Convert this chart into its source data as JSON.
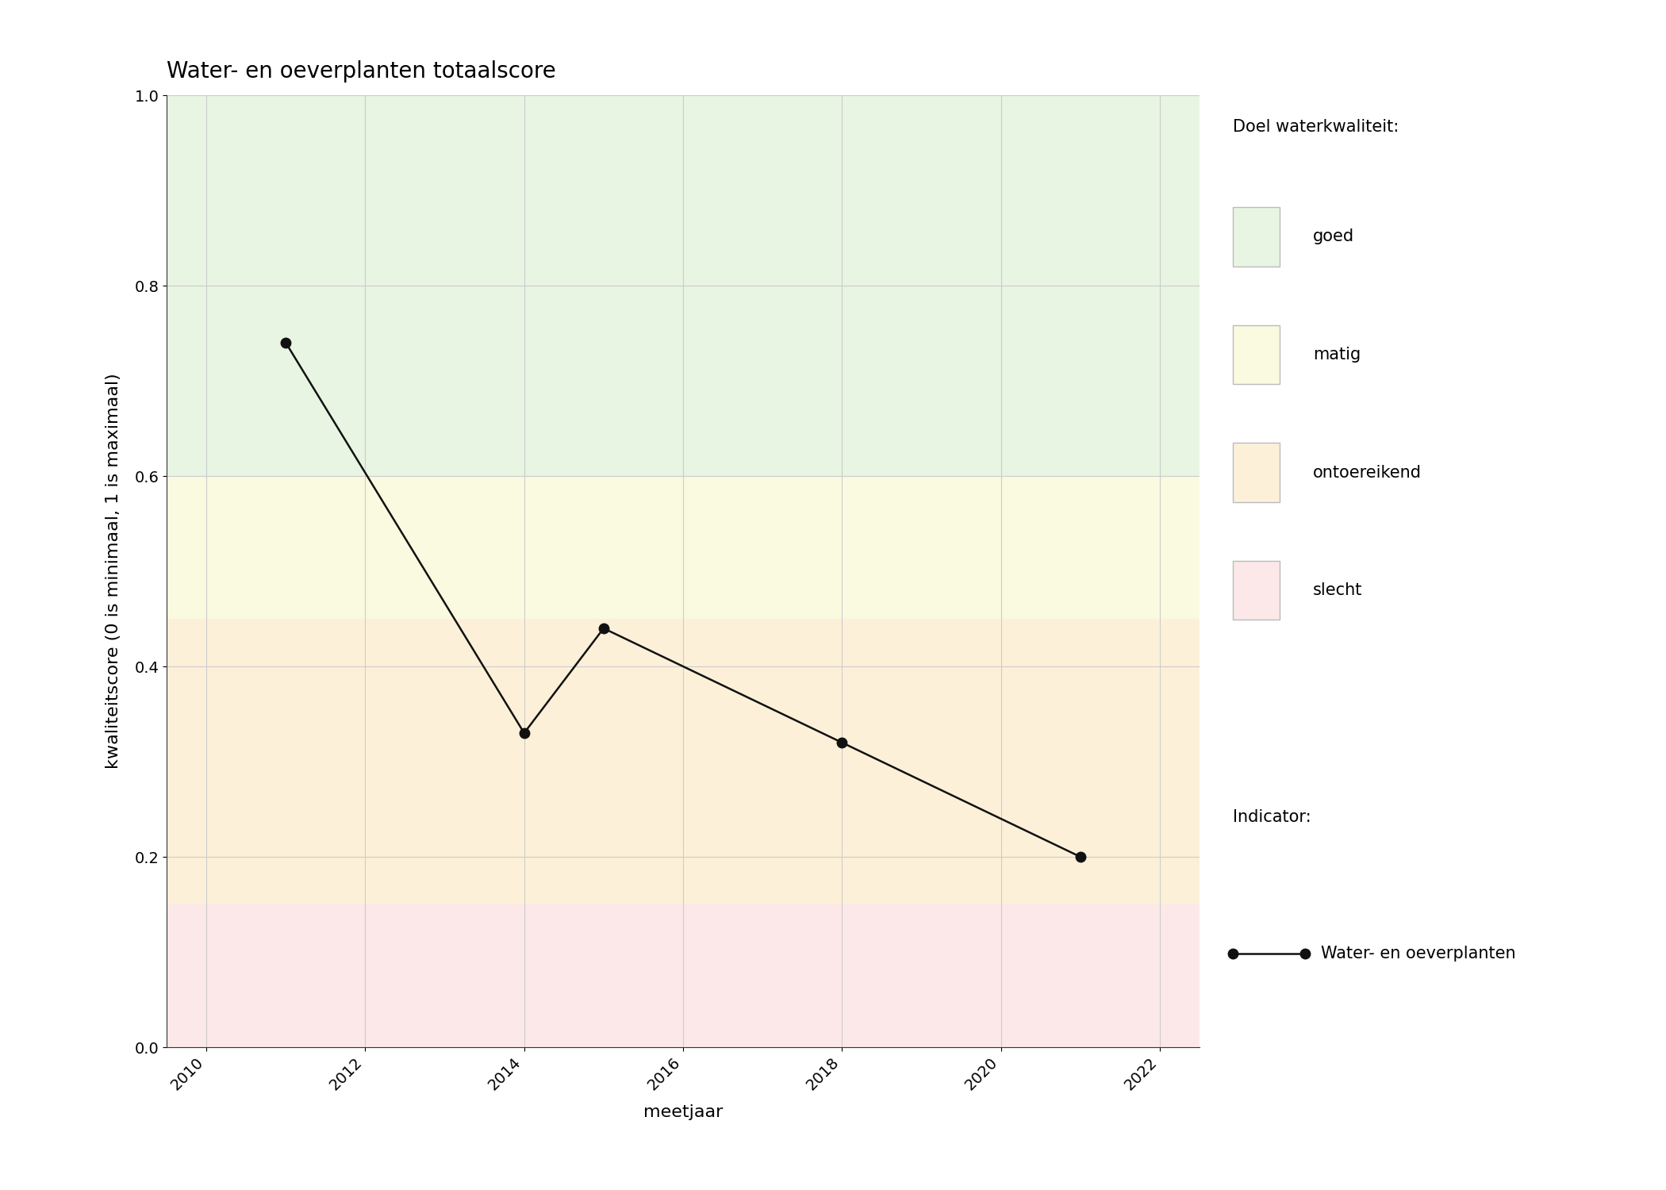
{
  "title": "Water- en oeverplanten totaalscore",
  "xlabel": "meetjaar",
  "ylabel": "kwaliteitscore (0 is minimaal, 1 is maximaal)",
  "years": [
    2011,
    2014,
    2015,
    2018,
    2021
  ],
  "values": [
    0.74,
    0.33,
    0.44,
    0.32,
    0.2
  ],
  "xlim": [
    2009.5,
    2022.5
  ],
  "ylim": [
    0.0,
    1.0
  ],
  "xticks": [
    2010,
    2012,
    2014,
    2016,
    2018,
    2020,
    2022
  ],
  "yticks": [
    0.0,
    0.2,
    0.4,
    0.6,
    0.8,
    1.0
  ],
  "bands": [
    {
      "ymin": 0.6,
      "ymax": 1.0,
      "color": "#e8f5e2",
      "label": "goed"
    },
    {
      "ymin": 0.45,
      "ymax": 0.6,
      "color": "#fafae0",
      "label": "matig"
    },
    {
      "ymin": 0.15,
      "ymax": 0.45,
      "color": "#fdf0d8",
      "label": "ontoereikend"
    },
    {
      "ymin": 0.0,
      "ymax": 0.15,
      "color": "#fce8e8",
      "label": "slecht"
    }
  ],
  "line_color": "#111111",
  "marker": "o",
  "markersize": 9,
  "linewidth": 1.8,
  "legend_title_quality": "Doel waterkwaliteit:",
  "legend_title_indicator": "Indicator:",
  "legend_indicator_label": "Water- en oeverplanten",
  "bg_color": "#ffffff",
  "grid_color": "#cccccc",
  "title_fontsize": 20,
  "label_fontsize": 16,
  "tick_fontsize": 14,
  "legend_fontsize": 15
}
